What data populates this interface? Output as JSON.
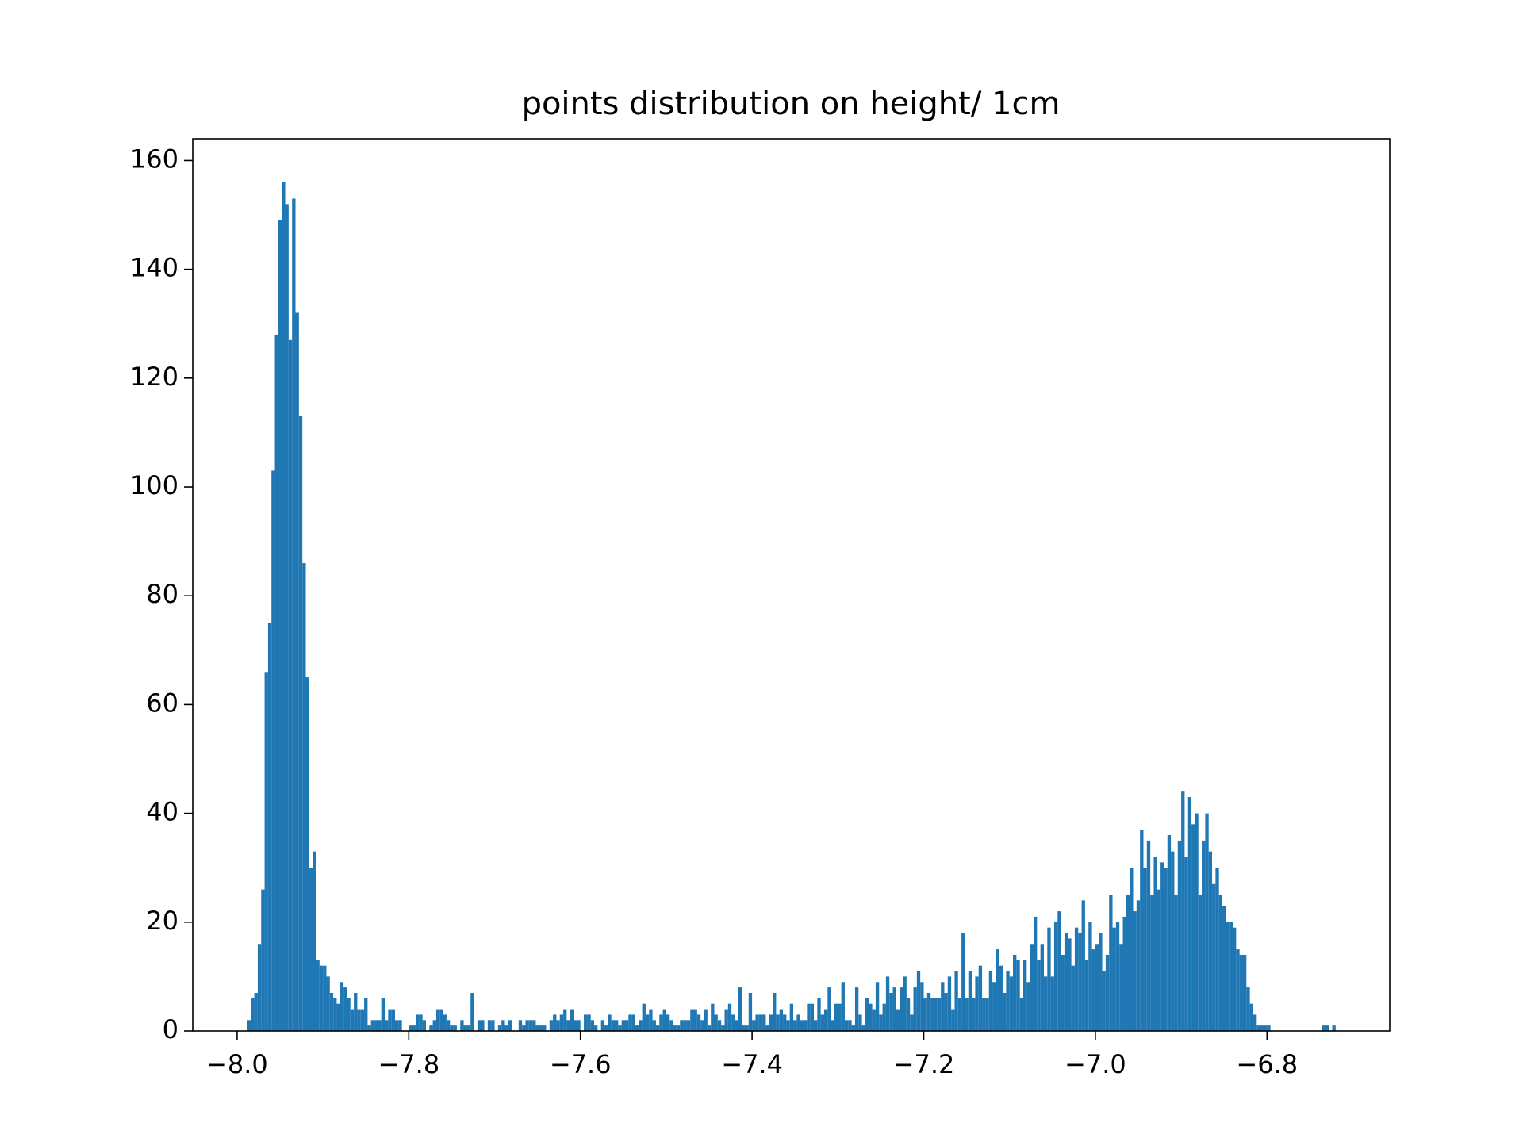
{
  "chart_data": {
    "type": "histogram",
    "title": "points distribution on height/ 1cm",
    "color": "#1f77b4",
    "xlim": [
      -8.0517,
      -6.657
    ],
    "ylim": [
      0,
      164
    ],
    "xticks": [
      {
        "value": -8.0,
        "label": "−8.0"
      },
      {
        "value": -7.8,
        "label": "−7.8"
      },
      {
        "value": -7.6,
        "label": "−7.6"
      },
      {
        "value": -7.4,
        "label": "−7.4"
      },
      {
        "value": -7.2,
        "label": "−7.2"
      },
      {
        "value": -7.0,
        "label": "−7.0"
      },
      {
        "value": -6.8,
        "label": "−6.8"
      }
    ],
    "yticks": [
      0,
      20,
      40,
      60,
      80,
      100,
      120,
      140,
      160
    ],
    "bins": [
      -7.988,
      -7.984,
      -7.98,
      -7.976,
      -7.972,
      -7.968,
      -7.964,
      -7.96,
      -7.956,
      -7.952,
      -7.948,
      -7.944,
      -7.94,
      -7.936,
      -7.932,
      -7.928,
      -7.924,
      -7.92,
      -7.916,
      -7.912,
      -7.908,
      -7.904,
      -7.9,
      -7.896,
      -7.892,
      -7.888,
      -7.884,
      -7.88,
      -7.876,
      -7.872,
      -7.868,
      -7.864,
      -7.86,
      -7.856,
      -7.852,
      -7.848,
      -7.844,
      -7.84,
      -7.836,
      -7.832,
      -7.828,
      -7.824,
      -7.82,
      -7.816,
      -7.812,
      -7.808,
      -7.804,
      -7.8,
      -7.796,
      -7.792,
      -7.788,
      -7.784,
      -7.78,
      -7.776,
      -7.772,
      -7.768,
      -7.764,
      -7.76,
      -7.756,
      -7.752,
      -7.748,
      -7.744,
      -7.74,
      -7.736,
      -7.732,
      -7.728,
      -7.724,
      -7.72,
      -7.716,
      -7.712,
      -7.708,
      -7.704,
      -7.7,
      -7.696,
      -7.692,
      -7.688,
      -7.684,
      -7.68,
      -7.676,
      -7.672,
      -7.668,
      -7.664,
      -7.66,
      -7.656,
      -7.652,
      -7.648,
      -7.644,
      -7.64,
      -7.636,
      -7.632,
      -7.628,
      -7.624,
      -7.62,
      -7.616,
      -7.612,
      -7.608,
      -7.604,
      -7.6,
      -7.596,
      -7.592,
      -7.588,
      -7.584,
      -7.58,
      -7.576,
      -7.572,
      -7.568,
      -7.564,
      -7.56,
      -7.556,
      -7.552,
      -7.548,
      -7.544,
      -7.54,
      -7.536,
      -7.532,
      -7.528,
      -7.524,
      -7.52,
      -7.516,
      -7.512,
      -7.508,
      -7.504,
      -7.5,
      -7.496,
      -7.492,
      -7.488,
      -7.484,
      -7.48,
      -7.476,
      -7.472,
      -7.468,
      -7.464,
      -7.46,
      -7.456,
      -7.452,
      -7.448,
      -7.444,
      -7.44,
      -7.436,
      -7.432,
      -7.428,
      -7.424,
      -7.42,
      -7.416,
      -7.412,
      -7.408,
      -7.404,
      -7.4,
      -7.396,
      -7.392,
      -7.388,
      -7.384,
      -7.38,
      -7.376,
      -7.372,
      -7.368,
      -7.364,
      -7.36,
      -7.356,
      -7.352,
      -7.348,
      -7.344,
      -7.34,
      -7.336,
      -7.332,
      -7.328,
      -7.324,
      -7.32,
      -7.316,
      -7.312,
      -7.308,
      -7.304,
      -7.3,
      -7.296,
      -7.292,
      -7.288,
      -7.284,
      -7.28,
      -7.276,
      -7.272,
      -7.268,
      -7.264,
      -7.26,
      -7.256,
      -7.252,
      -7.248,
      -7.244,
      -7.24,
      -7.236,
      -7.232,
      -7.228,
      -7.224,
      -7.22,
      -7.216,
      -7.212,
      -7.208,
      -7.204,
      -7.2,
      -7.196,
      -7.192,
      -7.188,
      -7.184,
      -7.18,
      -7.176,
      -7.172,
      -7.168,
      -7.164,
      -7.16,
      -7.156,
      -7.152,
      -7.148,
      -7.144,
      -7.14,
      -7.136,
      -7.132,
      -7.128,
      -7.124,
      -7.12,
      -7.116,
      -7.112,
      -7.108,
      -7.104,
      -7.1,
      -7.096,
      -7.092,
      -7.088,
      -7.084,
      -7.08,
      -7.076,
      -7.072,
      -7.068,
      -7.064,
      -7.06,
      -7.056,
      -7.052,
      -7.048,
      -7.044,
      -7.04,
      -7.036,
      -7.032,
      -7.028,
      -7.024,
      -7.02,
      -7.016,
      -7.012,
      -7.008,
      -7.004,
      -7.0,
      -6.996,
      -6.992,
      -6.988,
      -6.984,
      -6.98,
      -6.976,
      -6.972,
      -6.968,
      -6.964,
      -6.96,
      -6.956,
      -6.952,
      -6.948,
      -6.944,
      -6.94,
      -6.936,
      -6.932,
      -6.928,
      -6.924,
      -6.92,
      -6.916,
      -6.912,
      -6.908,
      -6.904,
      -6.9,
      -6.896,
      -6.892,
      -6.888,
      -6.884,
      -6.88,
      -6.876,
      -6.872,
      -6.868,
      -6.864,
      -6.86,
      -6.856,
      -6.852,
      -6.848,
      -6.844,
      -6.84,
      -6.836,
      -6.832,
      -6.828,
      -6.824,
      -6.82,
      -6.816,
      -6.812,
      -6.808,
      -6.804,
      -6.8,
      -6.796,
      -6.792,
      -6.788,
      -6.784,
      -6.78,
      -6.776,
      -6.772,
      -6.768,
      -6.764,
      -6.76,
      -6.756,
      -6.752,
      -6.748,
      -6.744,
      -6.74,
      -6.736,
      -6.732,
      -6.728,
      -6.724,
      -6.72
    ],
    "values": [
      2,
      6,
      7,
      16,
      26,
      66,
      75,
      103,
      128,
      149,
      156,
      152,
      127,
      153,
      132,
      113,
      86,
      65,
      30,
      33,
      13,
      12,
      12,
      10,
      7,
      6,
      5,
      9,
      8,
      6,
      4,
      7,
      4,
      4,
      6,
      1,
      2,
      2,
      2,
      6,
      2,
      4,
      4,
      2,
      2,
      0,
      0,
      1,
      1,
      3,
      3,
      2,
      0,
      1,
      2,
      4,
      4,
      3,
      2,
      1,
      1,
      0,
      2,
      1,
      1,
      7,
      0,
      2,
      2,
      0,
      2,
      2,
      0,
      1,
      2,
      1,
      2,
      0,
      0,
      2,
      1,
      2,
      2,
      2,
      1,
      1,
      1,
      0,
      2,
      3,
      2,
      3,
      4,
      2,
      4,
      2,
      2,
      0,
      3,
      3,
      2,
      1,
      0,
      2,
      1,
      3,
      2,
      2,
      1,
      2,
      2,
      3,
      3,
      1,
      2,
      5,
      3,
      4,
      2,
      1,
      3,
      4,
      3,
      2,
      1,
      1,
      2,
      2,
      2,
      4,
      4,
      3,
      2,
      4,
      1,
      5,
      3,
      2,
      1,
      4,
      5,
      3,
      2,
      8,
      1,
      1,
      7,
      2,
      3,
      3,
      3,
      1,
      3,
      7,
      3,
      4,
      3,
      2,
      5,
      2,
      3,
      2,
      2,
      5,
      5,
      2,
      6,
      3,
      4,
      8,
      2,
      5,
      5,
      9,
      2,
      2,
      1,
      8,
      3,
      1,
      6,
      5,
      4,
      9,
      3,
      5,
      10,
      7,
      8,
      4,
      8,
      10,
      6,
      3,
      8,
      11,
      9,
      6,
      7,
      6,
      6,
      6,
      9,
      7,
      10,
      4,
      11,
      6,
      18,
      6,
      11,
      6,
      10,
      12,
      6,
      6,
      11,
      9,
      15,
      12,
      7,
      11,
      10,
      14,
      13,
      6,
      13,
      9,
      16,
      21,
      13,
      16,
      10,
      19,
      10,
      20,
      22,
      14,
      18,
      17,
      12,
      19,
      18,
      24,
      13,
      20,
      15,
      16,
      18,
      11,
      14,
      25,
      19,
      20,
      16,
      21,
      25,
      30,
      22,
      24,
      37,
      30,
      35,
      25,
      32,
      26,
      31,
      30,
      36,
      33,
      25,
      35,
      44,
      32,
      43,
      38,
      40,
      25,
      35,
      40,
      33,
      27,
      30,
      25,
      23,
      20,
      20,
      19,
      15,
      14,
      14,
      8,
      5,
      3,
      1,
      1,
      1,
      1,
      0,
      0,
      0,
      0,
      0,
      0,
      0,
      0,
      0,
      0,
      0,
      0,
      0,
      0,
      0,
      1,
      1,
      0,
      1
    ]
  }
}
